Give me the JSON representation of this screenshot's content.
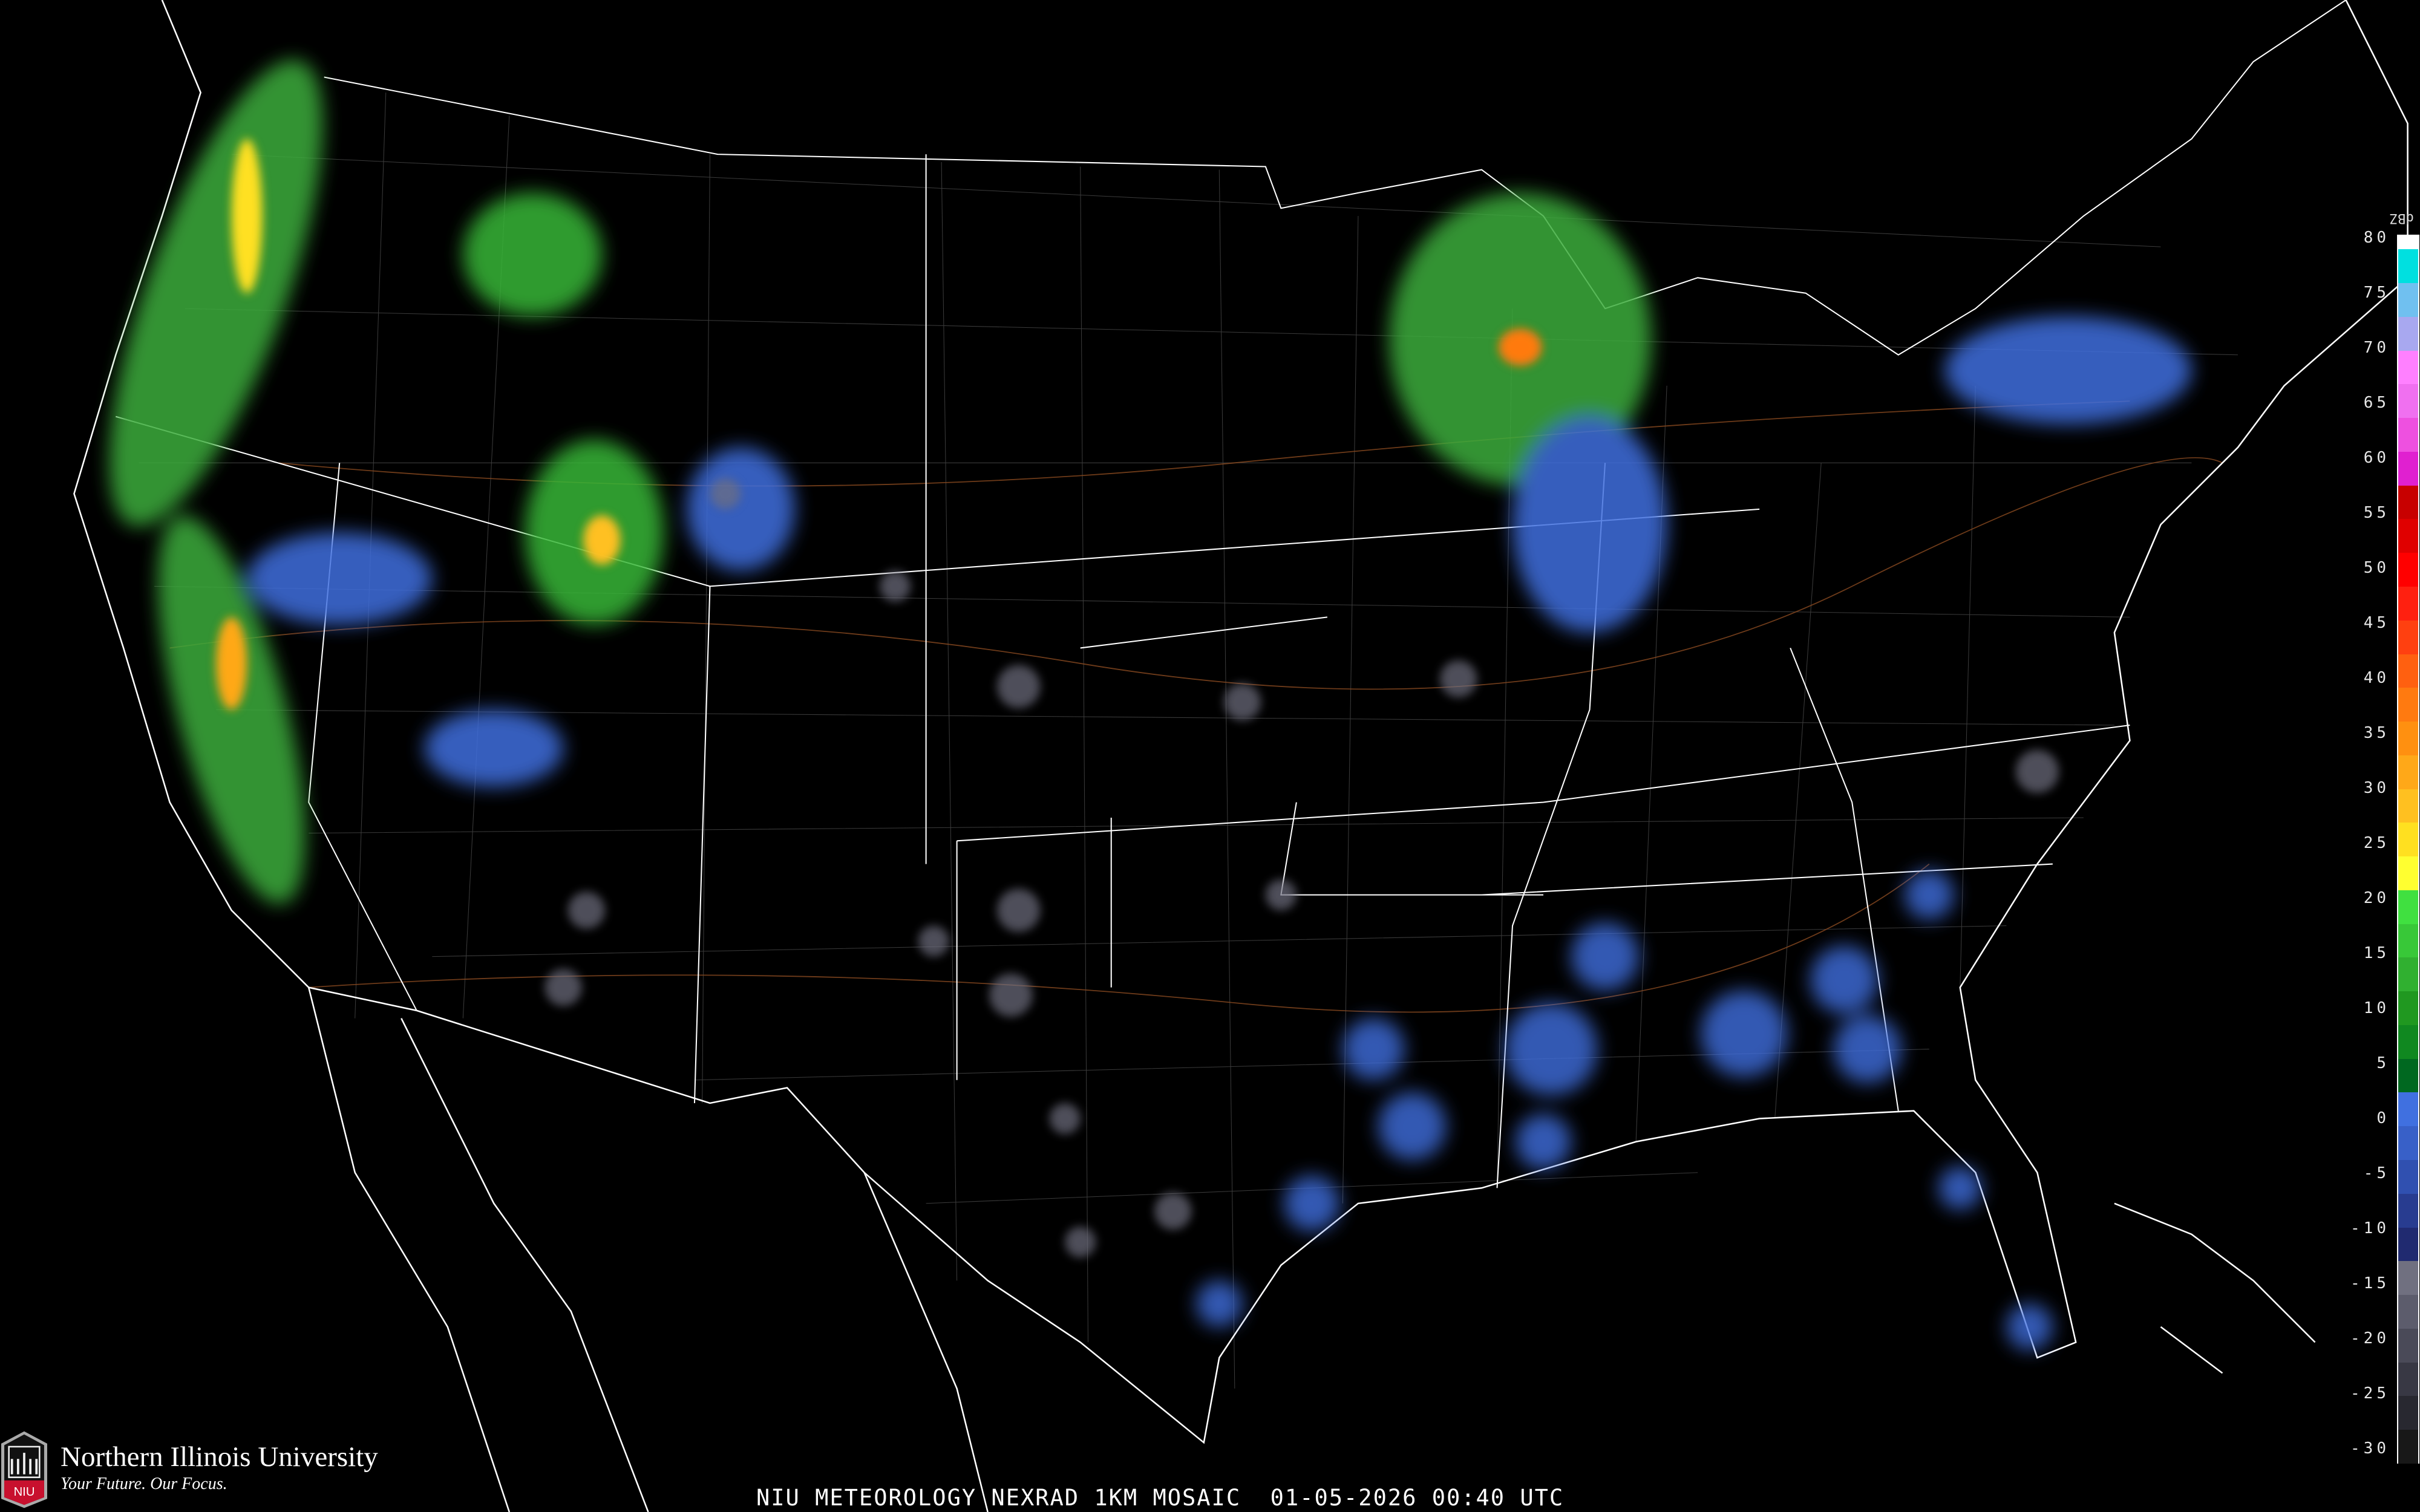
{
  "caption": "NIU METEOROLOGY NEXRAD 1KM MOSAIC  01-05-2026 00:40 UTC",
  "branding": {
    "name": "Northern Illinois University",
    "tagline": "Your Future. Our Focus.",
    "logo_text": "NIU"
  },
  "legend": {
    "unit": "dBZ",
    "ticks": [
      "80",
      "75",
      "70",
      "65",
      "60",
      "55",
      "50",
      "45",
      "40",
      "35",
      "30",
      "25",
      "20",
      "15",
      "10",
      "5",
      "0",
      "-5",
      "-10",
      "-15",
      "-20",
      "-25",
      "-30"
    ],
    "colors": [
      "#ffffff",
      "#00e0e0",
      "#70c0f0",
      "#a8a8f0",
      "#ff80ff",
      "#f070f0",
      "#ee50e0",
      "#e020d0",
      "#c80000",
      "#e00000",
      "#ff0000",
      "#ff2010",
      "#ff4010",
      "#ff6010",
      "#ff7a10",
      "#ff9010",
      "#ffa818",
      "#ffc020",
      "#ffe020",
      "#ffff30",
      "#40e040",
      "#38c838",
      "#30b030",
      "#209820",
      "#108820",
      "#006820",
      "#4070e0",
      "#3860c8",
      "#3050b0",
      "#283c90",
      "#202a70",
      "#707080",
      "#5c5c6c",
      "#4a4a58",
      "#383844",
      "#282830",
      "#181818"
    ]
  },
  "map_colors": {
    "background": "#000000",
    "borders": "#ffffff",
    "counties": "#6a6a6a",
    "highways": "#8a4a20"
  }
}
